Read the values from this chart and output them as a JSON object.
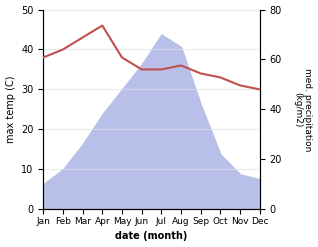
{
  "months": [
    "Jan",
    "Feb",
    "Mar",
    "Apr",
    "May",
    "Jun",
    "Jul",
    "Aug",
    "Sep",
    "Oct",
    "Nov",
    "Dec"
  ],
  "temperature": [
    38,
    40,
    43,
    46,
    38,
    35,
    35,
    36,
    34,
    33,
    31,
    30
  ],
  "precipitation": [
    10,
    16,
    26,
    38,
    48,
    58,
    70,
    65,
    42,
    22,
    14,
    12
  ],
  "temp_color": "#c0504d",
  "precip_fill_color": "#b8bfe8",
  "ylabel_left": "max temp (C)",
  "ylabel_right": "med. precipitation\n(kg/m2)",
  "xlabel": "date (month)",
  "ylim_left": [
    0,
    50
  ],
  "ylim_right": [
    0,
    80
  ],
  "bg_color": "#ffffff",
  "yticks_left": [
    0,
    10,
    20,
    30,
    40,
    50
  ],
  "yticks_right": [
    0,
    20,
    40,
    60,
    80
  ]
}
